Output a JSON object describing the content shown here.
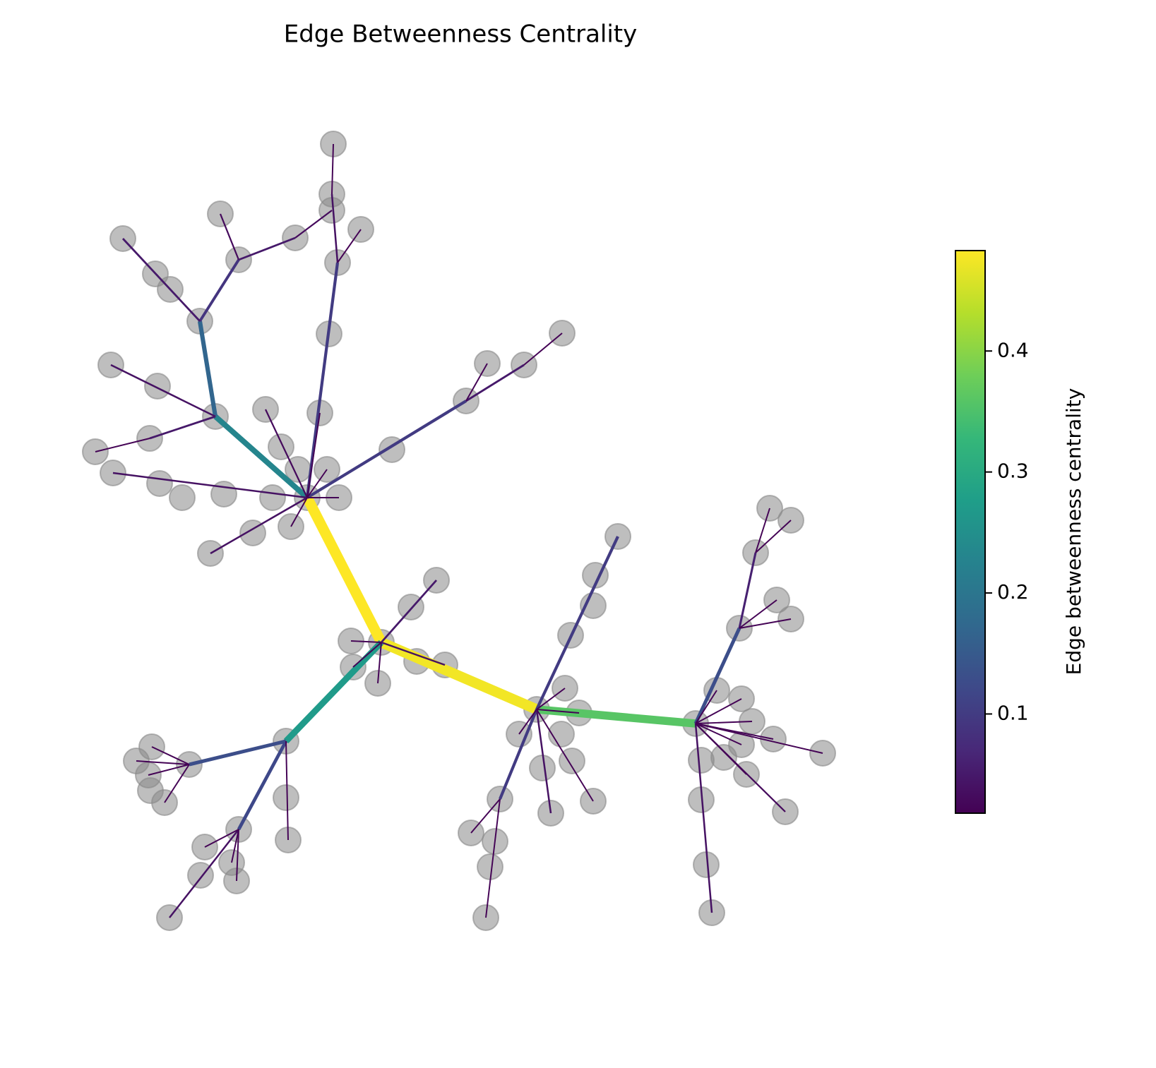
{
  "chart_data": {
    "type": "network",
    "title": "Edge Betweenness Centrality",
    "colorbar_label": "Edge betweenness centrality",
    "colormap": "viridis",
    "clim": [
      0.018,
      0.483
    ],
    "cticks": [
      0.1,
      0.2,
      0.3,
      0.4
    ],
    "edge_values": [
      0.483,
      0.475,
      0.36,
      0.27,
      0.23,
      0.17,
      0.09,
      0.03,
      0.05,
      0.03,
      0.05,
      0.04,
      0.05,
      0.02,
      0.1,
      0.04,
      0.02,
      0.02,
      0.1,
      0.05,
      0.02,
      0.02,
      0.03,
      0.02,
      0.04,
      0.04,
      0.02,
      0.02,
      0.02,
      0.05,
      0.04,
      0.02,
      0.02,
      0.02,
      0.13,
      0.12,
      0.02,
      0.02,
      0.02,
      0.02,
      0.02,
      0.04,
      0.02,
      0.02,
      0.02,
      0.1,
      0.1,
      0.02,
      0.02,
      0.02,
      0.02,
      0.02,
      0.04,
      0.02,
      0.13,
      0.06,
      0.02,
      0.02,
      0.02,
      0.02,
      0.02,
      0.03,
      0.04,
      0.02,
      0.02,
      0.02,
      0.02,
      0.02,
      0.02,
      0.02,
      0.02
    ]
  }
}
